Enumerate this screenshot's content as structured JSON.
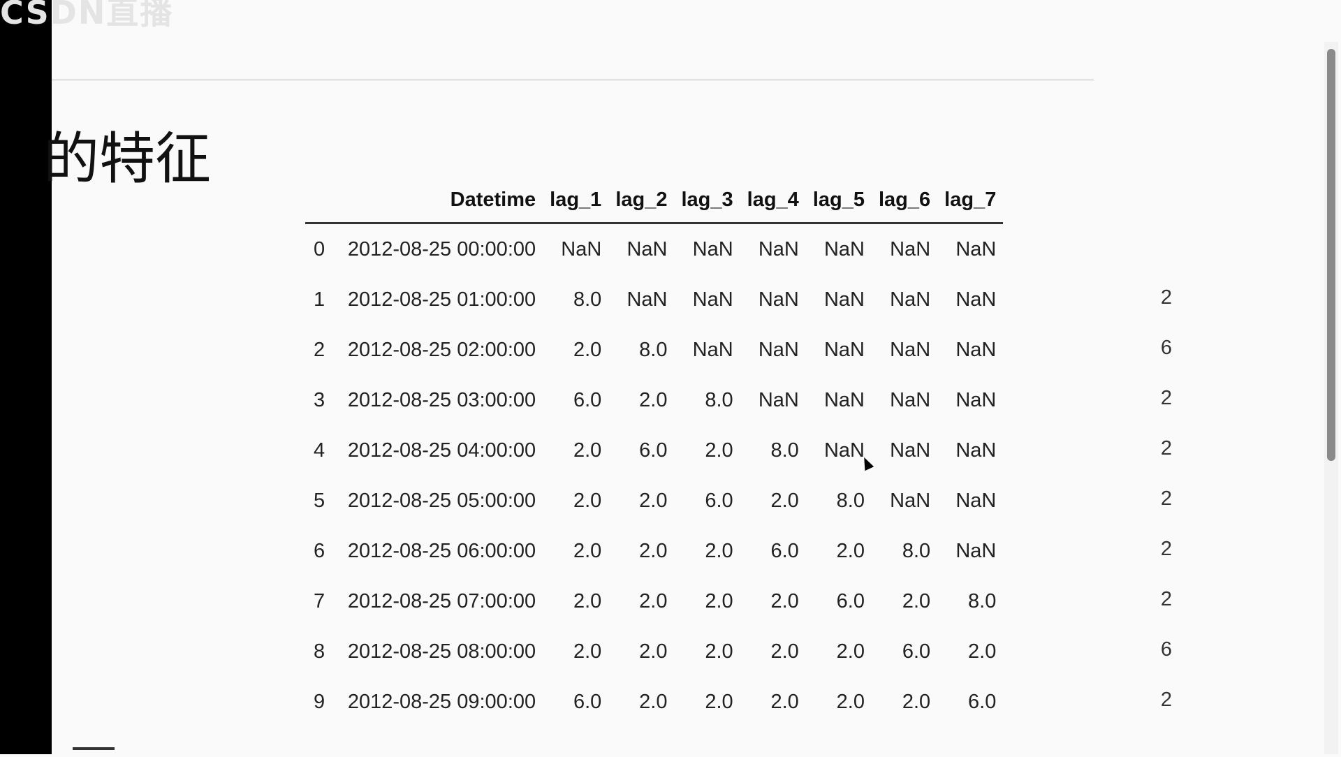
{
  "watermark": "CSDN直播",
  "heading": "的特征",
  "table": {
    "columns": [
      "",
      "Datetime",
      "lag_1",
      "lag_2",
      "lag_3",
      "lag_4",
      "lag_5",
      "lag_6",
      "lag_7"
    ],
    "rows": [
      [
        "0",
        "2012-08-25 00:00:00",
        "NaN",
        "NaN",
        "NaN",
        "NaN",
        "NaN",
        "NaN",
        "NaN"
      ],
      [
        "1",
        "2012-08-25 01:00:00",
        "8.0",
        "NaN",
        "NaN",
        "NaN",
        "NaN",
        "NaN",
        "NaN"
      ],
      [
        "2",
        "2012-08-25 02:00:00",
        "2.0",
        "8.0",
        "NaN",
        "NaN",
        "NaN",
        "NaN",
        "NaN"
      ],
      [
        "3",
        "2012-08-25 03:00:00",
        "6.0",
        "2.0",
        "8.0",
        "NaN",
        "NaN",
        "NaN",
        "NaN"
      ],
      [
        "4",
        "2012-08-25 04:00:00",
        "2.0",
        "6.0",
        "2.0",
        "8.0",
        "NaN",
        "NaN",
        "NaN"
      ],
      [
        "5",
        "2012-08-25 05:00:00",
        "2.0",
        "2.0",
        "6.0",
        "2.0",
        "8.0",
        "NaN",
        "NaN"
      ],
      [
        "6",
        "2012-08-25 06:00:00",
        "2.0",
        "2.0",
        "2.0",
        "6.0",
        "2.0",
        "8.0",
        "NaN"
      ],
      [
        "7",
        "2012-08-25 07:00:00",
        "2.0",
        "2.0",
        "2.0",
        "2.0",
        "6.0",
        "2.0",
        "8.0"
      ],
      [
        "8",
        "2012-08-25 08:00:00",
        "2.0",
        "2.0",
        "2.0",
        "2.0",
        "2.0",
        "6.0",
        "2.0"
      ],
      [
        "9",
        "2012-08-25 09:00:00",
        "6.0",
        "2.0",
        "2.0",
        "2.0",
        "2.0",
        "2.0",
        "6.0"
      ]
    ],
    "overflow_column_values": [
      "",
      "2",
      "6",
      "2",
      "2",
      "2",
      "2",
      "2",
      "6",
      "2"
    ]
  },
  "icons": {
    "cursor": "mouse-pointer-icon"
  }
}
